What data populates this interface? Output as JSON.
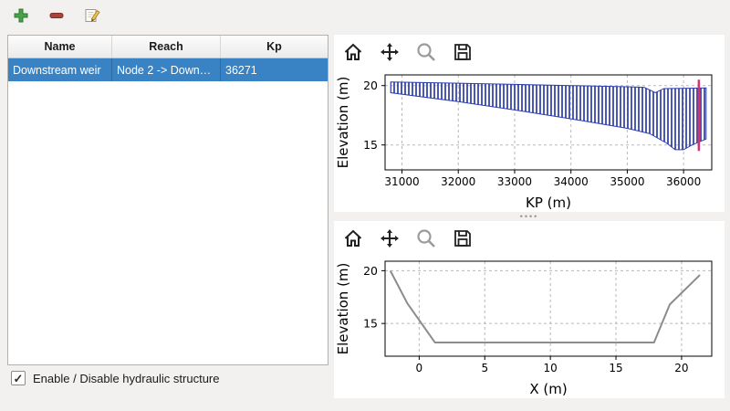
{
  "main_toolbar": {
    "buttons": [
      {
        "name": "add",
        "icon": "plus-icon"
      },
      {
        "name": "remove",
        "icon": "minus-icon"
      },
      {
        "name": "edit",
        "icon": "edit-icon"
      }
    ]
  },
  "table": {
    "columns": [
      "Name",
      "Reach",
      "Kp"
    ],
    "rows": [
      {
        "name": "Downstream weir",
        "reach": "Node 2 -> Down…",
        "kp": "36271",
        "selected": true
      }
    ]
  },
  "checkbox": {
    "label": "Enable / Disable hydraulic structure",
    "checked": true
  },
  "plot_toolbars": {
    "icons": [
      "home",
      "pan",
      "zoom",
      "save"
    ]
  },
  "icons": {
    "check": "✓",
    "splitter_dots": "••••"
  },
  "colors": {
    "selection_blue": "#3983c4",
    "profile_blue": "#2b3cae",
    "marker_red": "#d5356b",
    "section_gray": "#8c8c8c",
    "grid_gray": "#b8b8b8"
  },
  "chart_data": [
    {
      "type": "area",
      "title": "",
      "xlabel": "KP (m)",
      "ylabel": "Elevation (m)",
      "xlim": [
        30700,
        36500
      ],
      "ylim": [
        12.9,
        20.9
      ],
      "xticks": [
        31000,
        32000,
        33000,
        34000,
        35000,
        36000
      ],
      "yticks": [
        15,
        20
      ],
      "grid": true,
      "series": [
        {
          "name": "longitudinal channel band",
          "type": "band",
          "color": "#2b3cae",
          "top": [
            [
              30800,
              20.3
            ],
            [
              32000,
              20.2
            ],
            [
              33000,
              20.1
            ],
            [
              34000,
              20.0
            ],
            [
              35000,
              19.9
            ],
            [
              35300,
              19.85
            ],
            [
              35500,
              19.4
            ],
            [
              35650,
              19.75
            ],
            [
              36400,
              19.8
            ]
          ],
          "bottom": [
            [
              30800,
              19.4
            ],
            [
              32000,
              18.65
            ],
            [
              33000,
              17.95
            ],
            [
              34000,
              17.2
            ],
            [
              35000,
              16.4
            ],
            [
              35400,
              15.95
            ],
            [
              35700,
              15.15
            ],
            [
              35850,
              14.6
            ],
            [
              36000,
              14.6
            ],
            [
              36150,
              15.0
            ],
            [
              36400,
              15.5
            ]
          ]
        },
        {
          "name": "structure kp marker",
          "type": "vline",
          "x": 36271,
          "y0": 14.5,
          "y1": 20.5,
          "color": "#d5356b",
          "width": 2.5
        }
      ]
    },
    {
      "type": "line",
      "title": "",
      "xlabel": "X (m)",
      "ylabel": "Elevation (m)",
      "xlim": [
        -2.6,
        22.3
      ],
      "ylim": [
        11.9,
        20.9
      ],
      "xticks": [
        0,
        5,
        10,
        15,
        20
      ],
      "yticks": [
        15,
        20
      ],
      "grid": true,
      "series": [
        {
          "name": "cross section",
          "type": "line",
          "color": "#8c8c8c",
          "width": 2,
          "points": [
            [
              -2.2,
              20.0
            ],
            [
              -0.9,
              16.9
            ],
            [
              1.2,
              13.2
            ],
            [
              17.9,
              13.2
            ],
            [
              19.1,
              16.8
            ],
            [
              21.4,
              19.6
            ]
          ]
        }
      ]
    }
  ]
}
